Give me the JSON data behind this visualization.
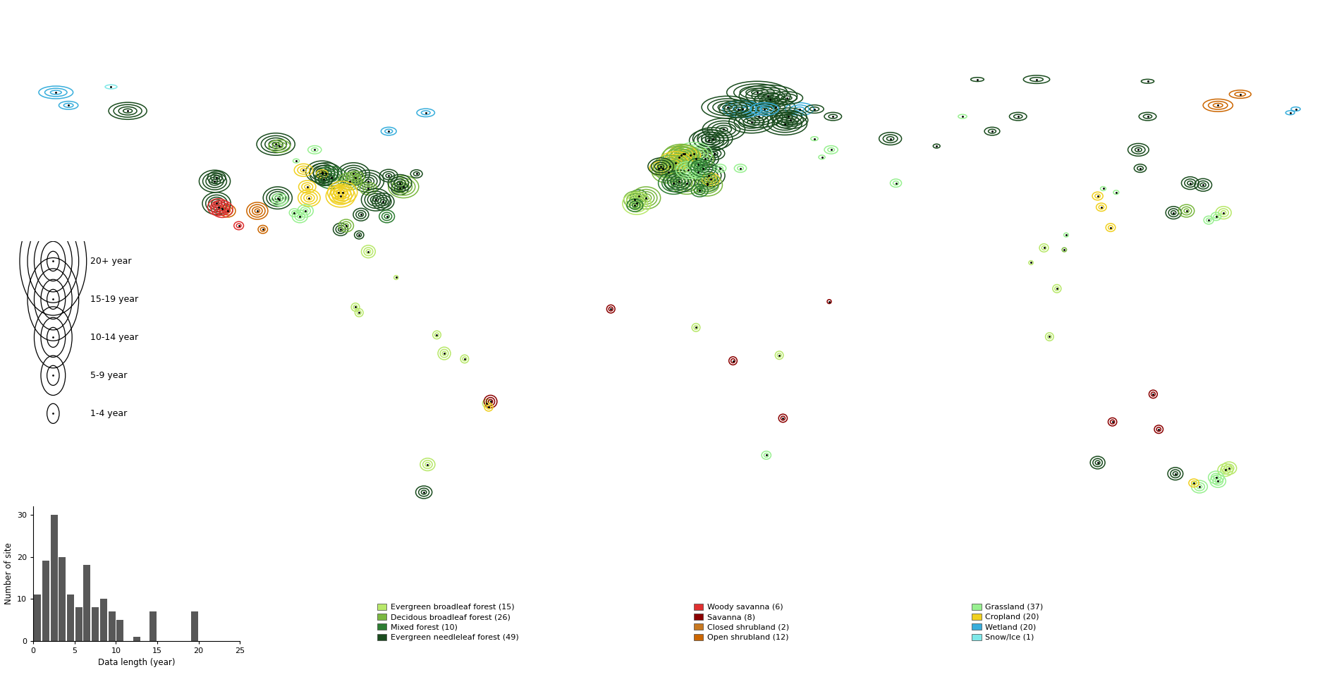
{
  "background_color": "#ffffff",
  "land_color": "#c8c8c8",
  "ocean_color": "#ffffff",
  "biome_colors": {
    "EBF": "#b8e86a",
    "DBF": "#7ab840",
    "MF": "#2d7d32",
    "ENF": "#1a4c1e",
    "WSA": "#e03030",
    "SAV": "#8b0000",
    "CSH": "#c87820",
    "OSH": "#cc6600",
    "GRA": "#98f090",
    "CRO": "#f0d020",
    "WET": "#38aedc",
    "SNO": "#7ee8e8"
  },
  "legend_biomes_col1": [
    {
      "label": "Evergreen broadleaf forest (15)",
      "color": "#b8e86a"
    },
    {
      "label": "Decidous broadleaf forest (26)",
      "color": "#7ab840"
    },
    {
      "label": "Mixed forest (10)",
      "color": "#2d7d32"
    },
    {
      "label": "Evergreen needleleaf forest (49)",
      "color": "#1a4c1e"
    }
  ],
  "legend_biomes_col2": [
    {
      "label": "Woody savanna (6)",
      "color": "#e03030"
    },
    {
      "label": "Savanna (8)",
      "color": "#8b0000"
    },
    {
      "label": "Closed shrubland (2)",
      "color": "#c87820"
    },
    {
      "label": "Open shrubland (12)",
      "color": "#cc6600"
    }
  ],
  "legend_biomes_col3": [
    {
      "label": "Grassland (37)",
      "color": "#98f090"
    },
    {
      "label": "Cropland (20)",
      "color": "#f0d020"
    },
    {
      "label": "Wetland (20)",
      "color": "#38aedc"
    },
    {
      "label": "Snow/Ice (1)",
      "color": "#7ee8e8"
    }
  ],
  "legend_sizes": [
    {
      "label": "20+ year",
      "n_rings": 5
    },
    {
      "label": "15-19 year",
      "n_rings": 4
    },
    {
      "label": "10-14 year",
      "n_rings": 3
    },
    {
      "label": "5-9 year",
      "n_rings": 2
    },
    {
      "label": "1-4 year",
      "n_rings": 1
    }
  ],
  "hist_values": [
    11,
    19,
    30,
    20,
    11,
    8,
    18,
    8,
    10,
    7,
    5,
    0,
    1,
    0,
    7,
    0,
    0,
    0,
    0,
    7
  ],
  "hist_color": "#585858",
  "hist_xlabel": "Data length (year)",
  "hist_ylabel": "Number of site",
  "hist_ylim": [
    0,
    32
  ],
  "hist_xlim": [
    0,
    25
  ],
  "hist_xticks": [
    0,
    5,
    10,
    15,
    20,
    25
  ],
  "hist_yticks": [
    0,
    10,
    20,
    30
  ],
  "map_extent": [
    -180,
    180,
    -60,
    85
  ],
  "sites": [
    {
      "lon": -164.9,
      "lat": 68.5,
      "biome": "WET",
      "years": 12
    },
    {
      "lon": -161.5,
      "lat": 65.0,
      "biome": "WET",
      "years": 8
    },
    {
      "lon": -145.5,
      "lat": 63.5,
      "biome": "ENF",
      "years": 16
    },
    {
      "lon": -105.5,
      "lat": 54.5,
      "biome": "ENF",
      "years": 22
    },
    {
      "lon": -104.5,
      "lat": 54.0,
      "biome": "DBF",
      "years": 10
    },
    {
      "lon": -93.0,
      "lat": 47.0,
      "biome": "ENF",
      "years": 22
    },
    {
      "lon": -92.0,
      "lat": 46.5,
      "biome": "ENF",
      "years": 20
    },
    {
      "lon": -84.5,
      "lat": 46.5,
      "biome": "ENF",
      "years": 22
    },
    {
      "lon": -80.5,
      "lat": 44.5,
      "biome": "ENF",
      "years": 22
    },
    {
      "lon": -90.5,
      "lat": 45.5,
      "biome": "MF",
      "years": 20
    },
    {
      "lon": -98.0,
      "lat": 47.5,
      "biome": "CRO",
      "years": 10
    },
    {
      "lon": -97.0,
      "lat": 43.0,
      "biome": "CRO",
      "years": 14
    },
    {
      "lon": -85.5,
      "lat": 44.5,
      "biome": "DBF",
      "years": 16
    },
    {
      "lon": -84.0,
      "lat": 45.5,
      "biome": "DBF",
      "years": 12
    },
    {
      "lon": -80.5,
      "lat": 42.5,
      "biome": "DBF",
      "years": 10
    },
    {
      "lon": -78.5,
      "lat": 39.5,
      "biome": "ENF",
      "years": 22
    },
    {
      "lon": -76.5,
      "lat": 39.0,
      "biome": "ENF",
      "years": 18
    },
    {
      "lon": -72.0,
      "lat": 42.5,
      "biome": "ENF",
      "years": 12
    },
    {
      "lon": -71.0,
      "lat": 43.0,
      "biome": "DBF",
      "years": 22
    },
    {
      "lon": -82.5,
      "lat": 35.5,
      "biome": "ENF",
      "years": 14
    },
    {
      "lon": -88.5,
      "lat": 41.5,
      "biome": "CRO",
      "years": 14
    },
    {
      "lon": -87.5,
      "lat": 41.5,
      "biome": "CRO",
      "years": 20
    },
    {
      "lon": -88.0,
      "lat": 40.5,
      "biome": "CRO",
      "years": 22
    },
    {
      "lon": -96.5,
      "lat": 40.0,
      "biome": "CRO",
      "years": 16
    },
    {
      "lon": -105.0,
      "lat": 40.0,
      "biome": "ENF",
      "years": 22
    },
    {
      "lon": -104.5,
      "lat": 39.5,
      "biome": "GRA",
      "years": 14
    },
    {
      "lon": -110.5,
      "lat": 36.5,
      "biome": "OSH",
      "years": 16
    },
    {
      "lon": -118.5,
      "lat": 36.5,
      "biome": "OSH",
      "years": 14
    },
    {
      "lon": -121.5,
      "lat": 38.5,
      "biome": "ENF",
      "years": 22
    },
    {
      "lon": -122.0,
      "lat": 44.5,
      "biome": "ENF",
      "years": 22
    },
    {
      "lon": -121.5,
      "lat": 45.5,
      "biome": "ENF",
      "years": 14
    },
    {
      "lon": -121.0,
      "lat": 37.5,
      "biome": "WSA",
      "years": 16
    },
    {
      "lon": -120.0,
      "lat": 37.0,
      "biome": "WSA",
      "years": 16
    },
    {
      "lon": -109.0,
      "lat": 31.5,
      "biome": "OSH",
      "years": 8
    },
    {
      "lon": -115.5,
      "lat": 32.5,
      "biome": "WSA",
      "years": 6
    },
    {
      "lon": -88.0,
      "lat": 31.5,
      "biome": "ENF",
      "years": 12
    },
    {
      "lon": -86.5,
      "lat": 32.5,
      "biome": "DBF",
      "years": 14
    },
    {
      "lon": -80.5,
      "lat": 25.5,
      "biome": "EBF",
      "years": 10
    },
    {
      "lon": -84.0,
      "lat": 10.5,
      "biome": "EBF",
      "years": 8
    },
    {
      "lon": -83.0,
      "lat": 9.0,
      "biome": "EBF",
      "years": 8
    },
    {
      "lon": -62.0,
      "lat": 3.0,
      "biome": "EBF",
      "years": 6
    },
    {
      "lon": -60.0,
      "lat": -2.0,
      "biome": "EBF",
      "years": 10
    },
    {
      "lon": -54.5,
      "lat": -3.5,
      "biome": "EBF",
      "years": 8
    },
    {
      "lon": -48.5,
      "lat": -15.5,
      "biome": "EBF",
      "years": 8
    },
    {
      "lon": -47.5,
      "lat": -15.0,
      "biome": "SAV",
      "years": 12
    },
    {
      "lon": -48.0,
      "lat": -16.5,
      "biome": "CRO",
      "years": 6
    },
    {
      "lon": -64.5,
      "lat": -32.0,
      "biome": "EBF",
      "years": 10
    },
    {
      "lon": -65.5,
      "lat": -39.5,
      "biome": "ENF",
      "years": 10
    },
    {
      "lon": -15.0,
      "lat": 10.0,
      "biome": "SAV",
      "years": 8
    },
    {
      "lon": 8.0,
      "lat": 5.0,
      "biome": "EBF",
      "years": 6
    },
    {
      "lon": 18.0,
      "lat": -4.0,
      "biome": "SAV",
      "years": 8
    },
    {
      "lon": 30.5,
      "lat": -2.5,
      "biome": "EBF",
      "years": 6
    },
    {
      "lon": 31.5,
      "lat": -19.5,
      "biome": "SAV",
      "years": 8
    },
    {
      "lon": 27.0,
      "lat": -29.5,
      "biome": "GRA",
      "years": 6
    },
    {
      "lon": 23.0,
      "lat": 60.5,
      "biome": "ENF",
      "years": 22
    },
    {
      "lon": 25.0,
      "lat": 62.0,
      "biome": "ENF",
      "years": 22
    },
    {
      "lon": 27.5,
      "lat": 67.5,
      "biome": "ENF",
      "years": 20
    },
    {
      "lon": 29.5,
      "lat": 64.5,
      "biome": "ENF",
      "years": 18
    },
    {
      "lon": 24.5,
      "lat": 68.5,
      "biome": "ENF",
      "years": 22
    },
    {
      "lon": 20.5,
      "lat": 64.0,
      "biome": "WET",
      "years": 16
    },
    {
      "lon": 16.5,
      "lat": 64.5,
      "biome": "ENF",
      "years": 22
    },
    {
      "lon": 19.5,
      "lat": 64.0,
      "biome": "ENF",
      "years": 18
    },
    {
      "lon": 15.5,
      "lat": 58.5,
      "biome": "ENF",
      "years": 22
    },
    {
      "lon": 11.5,
      "lat": 55.5,
      "biome": "ENF",
      "years": 22
    },
    {
      "lon": 12.5,
      "lat": 56.0,
      "biome": "ENF",
      "years": 22
    },
    {
      "lon": 13.0,
      "lat": 52.0,
      "biome": "ENF",
      "years": 14
    },
    {
      "lon": 10.5,
      "lat": 50.5,
      "biome": "ENF",
      "years": 16
    },
    {
      "lon": 8.0,
      "lat": 50.5,
      "biome": "DBF",
      "years": 22
    },
    {
      "lon": 7.5,
      "lat": 52.0,
      "biome": "GRA",
      "years": 22
    },
    {
      "lon": 4.5,
      "lat": 52.0,
      "biome": "CRO",
      "years": 16
    },
    {
      "lon": 6.5,
      "lat": 51.5,
      "biome": "CRO",
      "years": 14
    },
    {
      "lon": 5.0,
      "lat": 52.0,
      "biome": "DBF",
      "years": 18
    },
    {
      "lon": 4.0,
      "lat": 51.5,
      "biome": "DBF",
      "years": 22
    },
    {
      "lon": 3.5,
      "lat": 51.0,
      "biome": "DBF",
      "years": 20
    },
    {
      "lon": 2.5,
      "lat": 49.5,
      "biome": "CRO",
      "years": 22
    },
    {
      "lon": 1.0,
      "lat": 48.5,
      "biome": "DBF",
      "years": 20
    },
    {
      "lon": -1.0,
      "lat": 48.0,
      "biome": "DBF",
      "years": 16
    },
    {
      "lon": -2.0,
      "lat": 48.0,
      "biome": "CRO",
      "years": 14
    },
    {
      "lon": 0.5,
      "lat": 47.0,
      "biome": "DBF",
      "years": 22
    },
    {
      "lon": -1.5,
      "lat": 48.5,
      "biome": "ENF",
      "years": 18
    },
    {
      "lon": 5.5,
      "lat": 44.0,
      "biome": "DBF",
      "years": 22
    },
    {
      "lon": 3.5,
      "lat": 44.5,
      "biome": "ENF",
      "years": 22
    },
    {
      "lon": 2.0,
      "lat": 44.0,
      "biome": "MF",
      "years": 20
    },
    {
      "lon": 11.0,
      "lat": 44.0,
      "biome": "MF",
      "years": 16
    },
    {
      "lon": 11.5,
      "lat": 46.0,
      "biome": "ENF",
      "years": 20
    },
    {
      "lon": 12.0,
      "lat": 45.0,
      "biome": "CRO",
      "years": 14
    },
    {
      "lon": 11.0,
      "lat": 43.5,
      "biome": "DBF",
      "years": 22
    },
    {
      "lon": 9.0,
      "lat": 42.0,
      "biome": "MF",
      "years": 14
    },
    {
      "lon": -7.5,
      "lat": 40.5,
      "biome": "MF",
      "years": 14
    },
    {
      "lon": -5.5,
      "lat": 40.0,
      "biome": "DBF",
      "years": 22
    },
    {
      "lon": -8.5,
      "lat": 39.5,
      "biome": "DBF",
      "years": 18
    },
    {
      "lon": -8.0,
      "lat": 38.5,
      "biome": "EBF",
      "years": 22
    },
    {
      "lon": -8.5,
      "lat": 38.0,
      "biome": "MF",
      "years": 14
    },
    {
      "lon": 36.0,
      "lat": 64.0,
      "biome": "WET",
      "years": 10
    },
    {
      "lon": 33.0,
      "lat": 62.0,
      "biome": "ENF",
      "years": 16
    },
    {
      "lon": 32.0,
      "lat": 60.0,
      "biome": "ENF",
      "years": 22
    },
    {
      "lon": 33.5,
      "lat": 61.0,
      "biome": "ENF",
      "years": 18
    },
    {
      "lon": 60.5,
      "lat": 56.0,
      "biome": "ENF",
      "years": 10
    },
    {
      "lon": 84.0,
      "lat": 72.0,
      "biome": "ENF",
      "years": 4
    },
    {
      "lon": 100.0,
      "lat": 72.0,
      "biome": "ENF",
      "years": 6
    },
    {
      "lon": 130.0,
      "lat": 62.0,
      "biome": "ENF",
      "years": 8
    },
    {
      "lon": 149.0,
      "lat": 65.0,
      "biome": "OSH",
      "years": 14
    },
    {
      "lon": 130.0,
      "lat": 71.5,
      "biome": "ENF",
      "years": 4
    },
    {
      "lon": 127.5,
      "lat": 53.0,
      "biome": "ENF",
      "years": 10
    },
    {
      "lon": 128.0,
      "lat": 48.0,
      "biome": "ENF",
      "years": 8
    },
    {
      "lon": 118.0,
      "lat": 42.5,
      "biome": "GRA",
      "years": 4
    },
    {
      "lon": 121.5,
      "lat": 41.5,
      "biome": "GRA",
      "years": 4
    },
    {
      "lon": 116.5,
      "lat": 40.5,
      "biome": "CRO",
      "years": 8
    },
    {
      "lon": 117.5,
      "lat": 37.5,
      "biome": "CRO",
      "years": 8
    },
    {
      "lon": 120.0,
      "lat": 32.0,
      "biome": "CRO",
      "years": 8
    },
    {
      "lon": 108.0,
      "lat": 30.0,
      "biome": "GRA",
      "years": 4
    },
    {
      "lon": 102.0,
      "lat": 26.5,
      "biome": "EBF",
      "years": 8
    },
    {
      "lon": 107.5,
      "lat": 26.0,
      "biome": "DBF",
      "years": 4
    },
    {
      "lon": 98.5,
      "lat": 22.5,
      "biome": "EBF",
      "years": 4
    },
    {
      "lon": 105.5,
      "lat": 15.5,
      "biome": "EBF",
      "years": 6
    },
    {
      "lon": 103.5,
      "lat": 2.5,
      "biome": "EBF",
      "years": 6
    },
    {
      "lon": 137.0,
      "lat": 36.0,
      "biome": "ENF",
      "years": 14
    },
    {
      "lon": 140.5,
      "lat": 36.5,
      "biome": "DBF",
      "years": 10
    },
    {
      "lon": 141.5,
      "lat": 44.0,
      "biome": "ENF",
      "years": 12
    },
    {
      "lon": 145.0,
      "lat": 43.5,
      "biome": "ENF",
      "years": 10
    },
    {
      "lon": 150.5,
      "lat": 36.0,
      "biome": "EBF",
      "years": 12
    },
    {
      "lon": 148.5,
      "lat": 35.0,
      "biome": "GRA",
      "years": 8
    },
    {
      "lon": 146.5,
      "lat": 34.0,
      "biome": "GRA",
      "years": 6
    },
    {
      "lon": 151.0,
      "lat": -33.5,
      "biome": "EBF",
      "years": 10
    },
    {
      "lon": 152.0,
      "lat": -33.0,
      "biome": "EBF",
      "years": 14
    },
    {
      "lon": 148.5,
      "lat": -35.5,
      "biome": "GRA",
      "years": 10
    },
    {
      "lon": 149.0,
      "lat": -36.5,
      "biome": "GRA",
      "years": 12
    },
    {
      "lon": 144.0,
      "lat": -38.0,
      "biome": "GRA",
      "years": 14
    },
    {
      "lon": 142.5,
      "lat": -37.0,
      "biome": "CRO",
      "years": 6
    },
    {
      "lon": 137.5,
      "lat": -34.5,
      "biome": "ENF",
      "years": 10
    },
    {
      "lon": 116.5,
      "lat": -31.5,
      "biome": "ENF",
      "years": 12
    },
    {
      "lon": 131.5,
      "lat": -13.0,
      "biome": "SAV",
      "years": 8
    },
    {
      "lon": 133.0,
      "lat": -22.5,
      "biome": "SAV",
      "years": 8
    },
    {
      "lon": 120.5,
      "lat": -20.5,
      "biome": "SAV",
      "years": 6
    },
    {
      "lon": -73.0,
      "lat": 18.5,
      "biome": "EBF",
      "years": 4
    },
    {
      "lon": 44.0,
      "lat": 12.0,
      "biome": "SAV",
      "years": 4
    },
    {
      "lon": -75.0,
      "lat": 58.0,
      "biome": "WET",
      "years": 8
    },
    {
      "lon": -65.0,
      "lat": 63.0,
      "biome": "WET",
      "years": 6
    },
    {
      "lon": 170.0,
      "lat": 64.0,
      "biome": "WET",
      "years": 4
    },
    {
      "lon": 168.5,
      "lat": 63.0,
      "biome": "WET",
      "years": 4
    },
    {
      "lon": -75.5,
      "lat": 35.0,
      "biome": "MF",
      "years": 10
    },
    {
      "lon": 40.0,
      "lat": 56.0,
      "biome": "GRA",
      "years": 4
    },
    {
      "lon": 44.5,
      "lat": 53.0,
      "biome": "GRA",
      "years": 6
    },
    {
      "lon": 42.0,
      "lat": 51.0,
      "biome": "GRA",
      "years": 4
    },
    {
      "lon": -83.0,
      "lat": 30.0,
      "biome": "ENF",
      "years": 8
    },
    {
      "lon": 80.0,
      "lat": 62.0,
      "biome": "GRA",
      "years": 4
    },
    {
      "lon": 62.0,
      "lat": 44.0,
      "biome": "GRA",
      "years": 6
    },
    {
      "lon": 73.0,
      "lat": 54.0,
      "biome": "ENF",
      "years": 4
    },
    {
      "lon": 32.5,
      "lat": 67.0,
      "biome": "ENF",
      "years": 10
    },
    {
      "lon": 28.0,
      "lat": 66.5,
      "biome": "ENF",
      "years": 12
    },
    {
      "lon": 26.5,
      "lat": 64.0,
      "biome": "WET",
      "years": 14
    },
    {
      "lon": 6.0,
      "lat": 47.5,
      "biome": "GRA",
      "years": 16
    },
    {
      "lon": 8.5,
      "lat": 47.0,
      "biome": "GRA",
      "years": 12
    },
    {
      "lon": 14.5,
      "lat": 48.0,
      "biome": "GRA",
      "years": 8
    },
    {
      "lon": -95.0,
      "lat": 53.0,
      "biome": "GRA",
      "years": 6
    },
    {
      "lon": -100.0,
      "lat": 50.0,
      "biome": "GRA",
      "years": 4
    },
    {
      "lon": 155.0,
      "lat": 68.0,
      "biome": "OSH",
      "years": 6
    },
    {
      "lon": 10.0,
      "lat": 48.0,
      "biome": "MF",
      "years": 18
    },
    {
      "lon": 8.5,
      "lat": 49.0,
      "biome": "MF",
      "years": 14
    },
    {
      "lon": -100.5,
      "lat": 36.0,
      "biome": "GRA",
      "years": 8
    },
    {
      "lon": -99.0,
      "lat": 35.0,
      "biome": "GRA",
      "years": 10
    },
    {
      "lon": -97.5,
      "lat": 36.5,
      "biome": "GRA",
      "years": 14
    },
    {
      "lon": -93.0,
      "lat": 46.5,
      "biome": "CRO",
      "years": 6
    },
    {
      "lon": -92.5,
      "lat": 45.0,
      "biome": "ENF",
      "years": 14
    },
    {
      "lon": -75.0,
      "lat": 46.0,
      "biome": "ENF",
      "years": 10
    },
    {
      "lon": -72.0,
      "lat": 44.0,
      "biome": "ENF",
      "years": 16
    },
    {
      "lon": -67.5,
      "lat": 46.5,
      "biome": "ENF",
      "years": 8
    },
    {
      "lon": 95.0,
      "lat": 62.0,
      "biome": "ENF",
      "years": 6
    },
    {
      "lon": 88.0,
      "lat": 58.0,
      "biome": "ENF",
      "years": 6
    },
    {
      "lon": 20.0,
      "lat": 48.0,
      "biome": "GRA",
      "years": 8
    },
    {
      "lon": 40.0,
      "lat": 64.0,
      "biome": "ENF",
      "years": 8
    },
    {
      "lon": 45.0,
      "lat": 62.0,
      "biome": "ENF",
      "years": 6
    },
    {
      "lon": -150.0,
      "lat": 70.0,
      "biome": "SNO",
      "years": 4
    }
  ]
}
